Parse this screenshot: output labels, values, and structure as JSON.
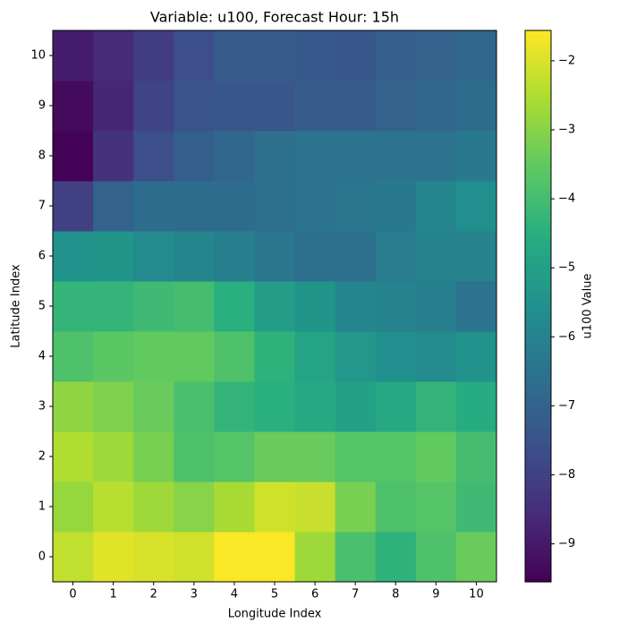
{
  "chart_data": {
    "type": "heatmap",
    "title": "Variable: u100, Forecast Hour: 15h",
    "x_label": "Longitude Index",
    "y_label": "Latitude Index",
    "colorbar_label": "u100 Value",
    "colormap": "viridis",
    "x": [
      0,
      1,
      2,
      3,
      4,
      5,
      6,
      7,
      8,
      9,
      10
    ],
    "y": [
      0,
      1,
      2,
      3,
      4,
      5,
      6,
      7,
      8,
      9,
      10
    ],
    "values": [
      [
        -2.3,
        -1.9,
        -2.0,
        -2.1,
        -1.6,
        -1.6,
        -2.7,
        -3.9,
        -4.4,
        -3.8,
        -3.4
      ],
      [
        -2.8,
        -2.4,
        -2.7,
        -3.0,
        -2.6,
        -2.1,
        -2.2,
        -3.2,
        -3.8,
        -3.7,
        -4.1
      ],
      [
        -2.5,
        -2.7,
        -3.2,
        -3.8,
        -3.7,
        -3.4,
        -3.4,
        -3.7,
        -3.7,
        -3.5,
        -4.0
      ],
      [
        -2.9,
        -3.1,
        -3.4,
        -3.9,
        -4.3,
        -4.5,
        -4.7,
        -5.0,
        -4.7,
        -4.3,
        -4.6
      ],
      [
        -3.8,
        -3.6,
        -3.5,
        -3.5,
        -3.8,
        -4.4,
        -4.9,
        -5.3,
        -5.6,
        -5.7,
        -5.5
      ],
      [
        -4.3,
        -4.3,
        -4.1,
        -4.0,
        -4.5,
        -5.1,
        -5.4,
        -5.9,
        -6.0,
        -6.1,
        -6.5
      ],
      [
        -5.5,
        -5.4,
        -5.7,
        -5.9,
        -6.1,
        -6.4,
        -6.6,
        -6.6,
        -6.2,
        -6.0,
        -6.0
      ],
      [
        -8.0,
        -7.0,
        -6.7,
        -6.7,
        -6.7,
        -6.6,
        -6.5,
        -6.4,
        -6.3,
        -5.9,
        -5.6
      ],
      [
        -9.5,
        -8.4,
        -7.6,
        -7.1,
        -6.9,
        -6.6,
        -6.5,
        -6.5,
        -6.5,
        -6.5,
        -6.3
      ],
      [
        -9.3,
        -8.7,
        -7.9,
        -7.5,
        -7.4,
        -7.4,
        -7.2,
        -7.2,
        -7.0,
        -6.9,
        -6.7
      ],
      [
        -8.9,
        -8.6,
        -8.1,
        -7.6,
        -7.2,
        -7.2,
        -7.3,
        -7.4,
        -7.1,
        -7.0,
        -6.9
      ]
    ],
    "zlim": [
      -9.55,
      -1.56
    ],
    "zticks": [
      {
        "value": -9,
        "label": "−9"
      },
      {
        "value": -8,
        "label": "−8"
      },
      {
        "value": -7,
        "label": "−7"
      },
      {
        "value": -6,
        "label": "−6"
      },
      {
        "value": -5,
        "label": "−5"
      },
      {
        "value": -4,
        "label": "−4"
      },
      {
        "value": -3,
        "label": "−3"
      },
      {
        "value": -2,
        "label": "−2"
      }
    ]
  }
}
